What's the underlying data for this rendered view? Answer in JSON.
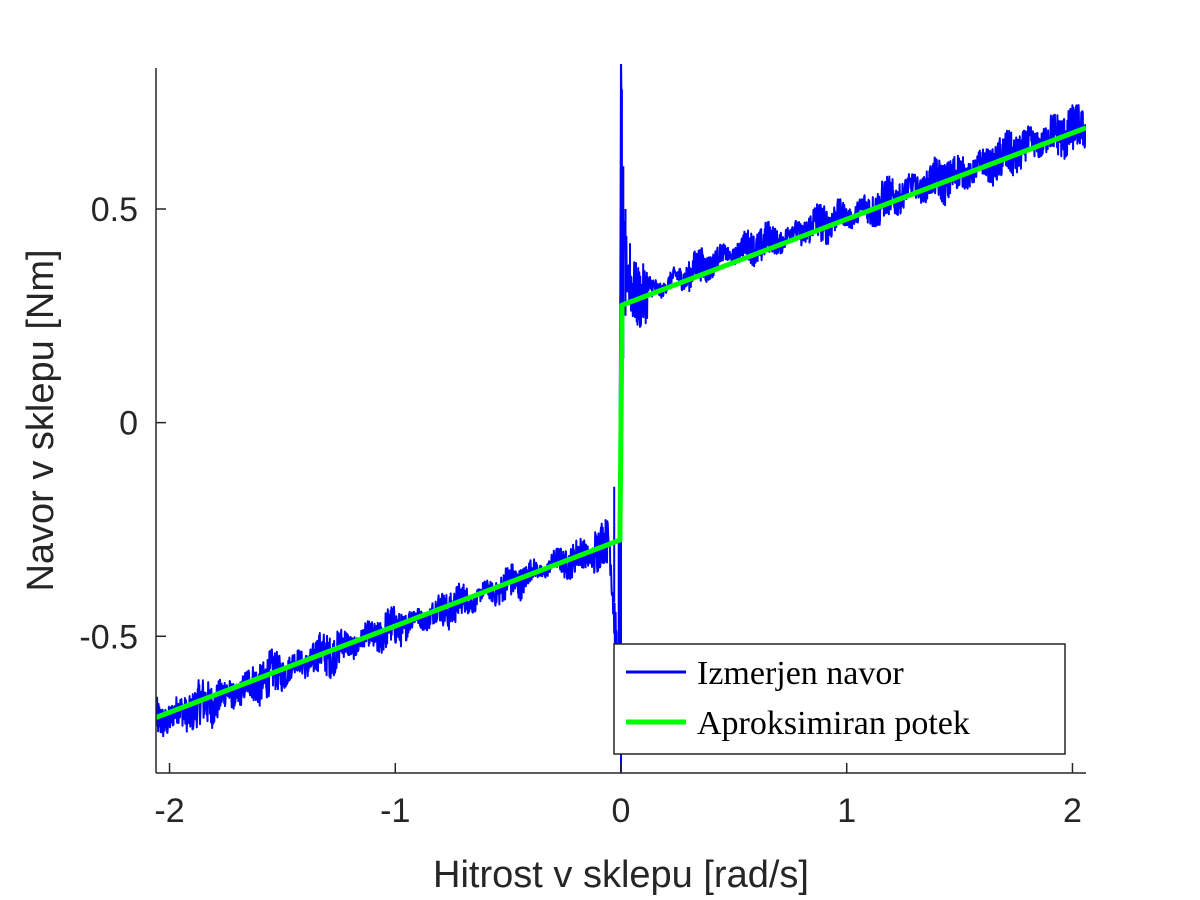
{
  "chart_data": {
    "type": "line",
    "xlabel": "Hitrost v sklepu [rad/s]",
    "ylabel": "Navor v sklepu [Nm]",
    "xlim": [
      -2.06,
      2.06
    ],
    "ylim": [
      -0.82,
      0.83
    ],
    "x_ticks": [
      -2,
      -1,
      0,
      1,
      2
    ],
    "x_tick_labels": [
      "-2",
      "-1",
      "0",
      "1",
      "2"
    ],
    "y_ticks": [
      -0.5,
      0,
      0.5
    ],
    "y_tick_labels": [
      "-0.5",
      "0",
      "0.5"
    ],
    "grid": false,
    "legend_position": "bottom-right",
    "series": [
      {
        "name": "Izmerjen navor",
        "color": "#0000ff",
        "style": "noisy measured signal",
        "x": [
          -2.06,
          -1.9,
          -1.7,
          -1.5,
          -1.3,
          -1.1,
          -0.9,
          -0.7,
          -0.5,
          -0.3,
          -0.15,
          -0.05,
          -0.01,
          0.0,
          0.005,
          0.01,
          0.03,
          0.05,
          0.1,
          0.3,
          0.5,
          0.7,
          0.9,
          1.1,
          1.3,
          1.5,
          1.7,
          1.9,
          2.06
        ],
        "y": [
          -0.7,
          -0.67,
          -0.63,
          -0.58,
          -0.54,
          -0.5,
          -0.46,
          -0.42,
          -0.38,
          -0.33,
          -0.31,
          -0.28,
          -0.6,
          0.8,
          0.55,
          0.4,
          0.34,
          0.31,
          0.3,
          0.35,
          0.4,
          0.43,
          0.47,
          0.5,
          0.55,
          0.58,
          0.62,
          0.67,
          0.69
        ]
      },
      {
        "name": "Aproksimiran potek",
        "color": "#00ff00",
        "style": "piecewise linear fit",
        "x": [
          -2.06,
          -0.005,
          0.005,
          2.06
        ],
        "y": [
          -0.69,
          -0.275,
          0.275,
          0.69
        ]
      }
    ]
  }
}
